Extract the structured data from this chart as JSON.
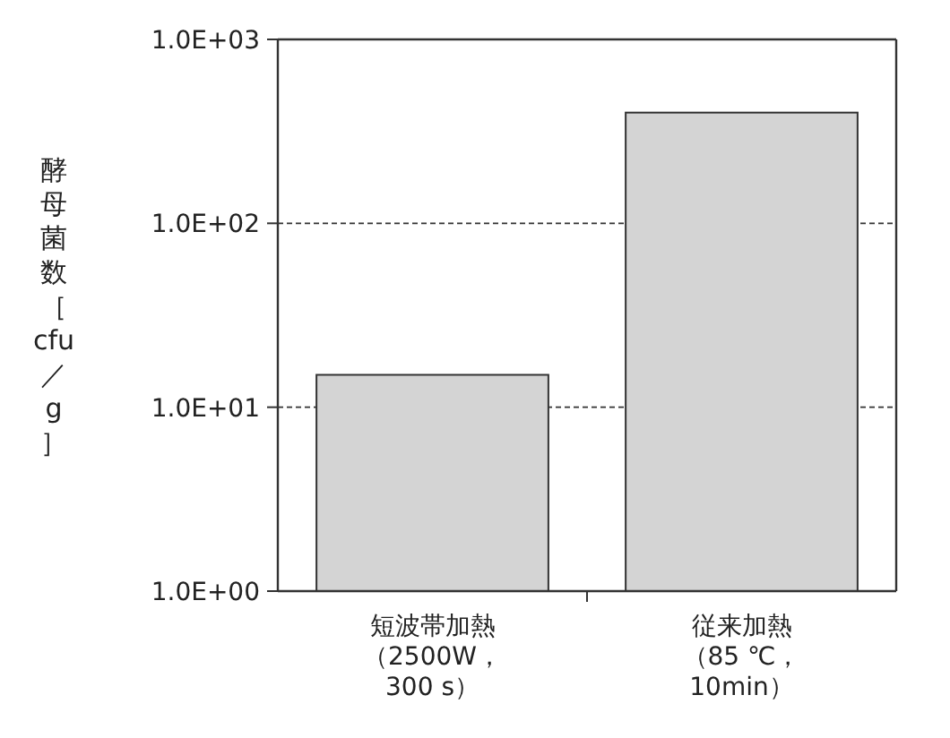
{
  "chart_data": {
    "type": "bar",
    "log": "y",
    "ylabel": "酵母菌数［cfu／g］",
    "categories": [
      "短波帯加熱（2500W，300 s）",
      "従来加熱（85 ℃，10min）"
    ],
    "values": [
      15,
      400
    ],
    "color": "#d4d4d4",
    "ylim": [
      1,
      1000
    ],
    "yticks": [
      {
        "value": 1,
        "label": "1.0E+00"
      },
      {
        "value": 10,
        "label": "1.0E+01"
      },
      {
        "value": 100,
        "label": "1.0E+02"
      },
      {
        "value": 1000,
        "label": "1.0E+03"
      }
    ],
    "grid": "y"
  }
}
